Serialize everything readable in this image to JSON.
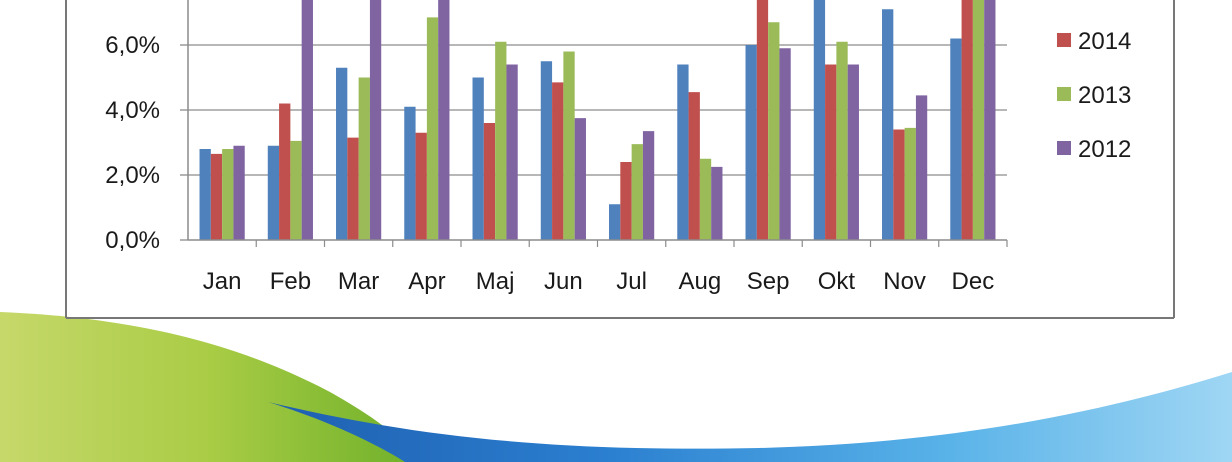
{
  "chart_data": {
    "type": "bar",
    "title": "",
    "xlabel": "",
    "ylabel": "",
    "categories": [
      "Jan",
      "Feb",
      "Mar",
      "Apr",
      "Maj",
      "Jun",
      "Jul",
      "Aug",
      "Sep",
      "Okt",
      "Nov",
      "Dec"
    ],
    "y_ticks": [
      "0,0%",
      "2,0%",
      "4,0%",
      "6,0%"
    ],
    "ylim": [
      0,
      8.0
    ],
    "grid": true,
    "legend_position": "right",
    "series": [
      {
        "name": "",
        "color": "#4F81BD",
        "values": [
          2.8,
          2.9,
          5.3,
          4.1,
          5.0,
          5.5,
          1.1,
          5.4,
          6.0,
          7.6,
          7.1,
          6.2
        ]
      },
      {
        "name": "2014",
        "color": "#C0504D",
        "values": [
          2.65,
          4.2,
          3.15,
          3.3,
          3.6,
          4.85,
          2.4,
          4.55,
          7.6,
          5.4,
          3.4,
          7.6
        ]
      },
      {
        "name": "2013",
        "color": "#9BBB59",
        "values": [
          2.8,
          3.05,
          5.0,
          6.85,
          6.1,
          5.8,
          2.95,
          2.5,
          6.7,
          6.1,
          3.45,
          7.6
        ]
      },
      {
        "name": "2012",
        "color": "#8064A2",
        "values": [
          2.9,
          7.6,
          7.6,
          7.6,
          5.4,
          3.75,
          3.35,
          2.25,
          5.9,
          5.4,
          4.45,
          7.6
        ]
      }
    ]
  }
}
